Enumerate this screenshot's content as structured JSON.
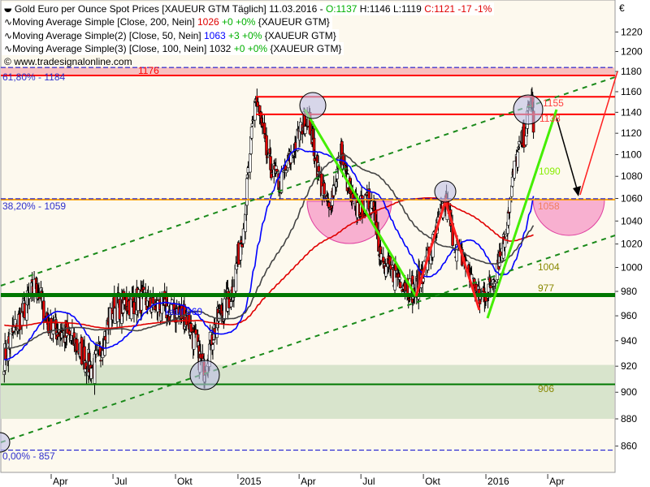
{
  "currency_symbol": "€",
  "legend": {
    "main": {
      "icon": "candlestick-icon",
      "name": "Gold Euro per Ounce Spot Prices [XAUEUR GTM  Täglich]",
      "date": "11.03.2016",
      "sep": "-",
      "open": "O:1137",
      "high": "H:1146",
      "low": "L:1119",
      "close": "C:1121",
      "change": "-17",
      "pct": "-1%"
    },
    "ma": [
      {
        "icon": "wave-icon",
        "name": "Moving Average Simple [Close, 200, Nein]",
        "value": "1026",
        "change": "+0",
        "pct": "+0%",
        "symbol": "{XAUEUR GTM}",
        "color": "#e00000"
      },
      {
        "icon": "wave-icon",
        "name": "Moving Average Simple(2) [Close, 50, Nein]",
        "value": "1063",
        "change": "+3",
        "pct": "+0%",
        "symbol": "{XAUEUR GTM}",
        "color": "#0000ff"
      },
      {
        "icon": "wave-icon",
        "name": "Moving Average Simple(3) [Close, 100, Nein]",
        "value": "1032",
        "change": "+0",
        "pct": "+0%",
        "symbol": "{XAUEUR GTM}",
        "color": "#444444"
      }
    ],
    "watermark": "www.tradesignalonline.com"
  },
  "chart_data": {
    "type": "candlestick",
    "yscale": "log",
    "ylim": [
      845,
      1235
    ],
    "xlim": [
      "2014-01-16",
      "2016-06-15"
    ],
    "yticks": [
      860,
      880,
      900,
      920,
      940,
      960,
      980,
      1000,
      1020,
      1040,
      1060,
      1080,
      1100,
      1120,
      1140,
      1160,
      1180,
      1200,
      1220
    ],
    "xticks": [
      {
        "date": "2014-04-01",
        "label": "Apr"
      },
      {
        "date": "2014-07-01",
        "label": "Jul"
      },
      {
        "date": "2014-10-01",
        "label": "Okt"
      },
      {
        "date": "2015-01-01",
        "label": "2015"
      },
      {
        "date": "2015-04-01",
        "label": "Apr"
      },
      {
        "date": "2015-07-01",
        "label": "Jul"
      },
      {
        "date": "2015-10-01",
        "label": "Okt"
      },
      {
        "date": "2016-01-01",
        "label": "2016"
      },
      {
        "date": "2016-04-01",
        "label": "Apr"
      }
    ],
    "close_path": [
      [
        "2014-01-22",
        927
      ],
      [
        "2014-02-09",
        953
      ],
      [
        "2014-03-10",
        986
      ],
      [
        "2014-03-28",
        953
      ],
      [
        "2014-05-03",
        940
      ],
      [
        "2014-06-02",
        917
      ],
      [
        "2014-07-02",
        966
      ],
      [
        "2014-08-07",
        973
      ],
      [
        "2014-09-12",
        966
      ],
      [
        "2014-10-18",
        959
      ],
      [
        "2014-11-11",
        917
      ],
      [
        "2014-11-29",
        953
      ],
      [
        "2014-12-23",
        979
      ],
      [
        "2015-01-09",
        1035
      ],
      [
        "2015-01-27",
        1156
      ],
      [
        "2015-02-14",
        1094
      ],
      [
        "2015-03-04",
        1072
      ],
      [
        "2015-03-22",
        1101
      ],
      [
        "2015-04-13",
        1140
      ],
      [
        "2015-05-03",
        1072
      ],
      [
        "2015-05-15",
        1050
      ],
      [
        "2015-06-02",
        1101
      ],
      [
        "2015-06-20",
        1050
      ],
      [
        "2015-07-20",
        1057
      ],
      [
        "2015-08-01",
        1000
      ],
      [
        "2015-08-25",
        993
      ],
      [
        "2015-09-18",
        979
      ],
      [
        "2015-10-12",
        1014
      ],
      [
        "2015-11-02",
        1057
      ],
      [
        "2015-11-16",
        1021
      ],
      [
        "2015-12-04",
        1000
      ],
      [
        "2015-12-22",
        973
      ],
      [
        "2016-01-09",
        986
      ],
      [
        "2016-01-27",
        1021
      ],
      [
        "2016-02-14",
        1094
      ],
      [
        "2016-02-26",
        1117
      ],
      [
        "2016-03-09",
        1156
      ],
      [
        "2016-03-11",
        1121
      ]
    ],
    "moving_averages": [
      {
        "period": 200,
        "color": "#e00000"
      },
      {
        "period": 50,
        "color": "#0000ff"
      },
      {
        "period": 100,
        "color": "#444444"
      }
    ],
    "levels": [
      {
        "value": 1184,
        "label": "61,80% - 1184",
        "style": "dashed",
        "color": "#0000cc"
      },
      {
        "value": 1176,
        "label": "1176",
        "style": "solid",
        "color": "#ff0000"
      },
      {
        "value": 1155,
        "label": "1155",
        "style": "solid",
        "color": "#ff0000"
      },
      {
        "value": 1138,
        "label": "1138",
        "style": "solid",
        "color": "#ff0000"
      },
      {
        "value": 1090,
        "label": "1090",
        "color": "#88ee00"
      },
      {
        "value": 1059,
        "label": "38,20% - 1059",
        "style": "dashed",
        "color": "#ffa000"
      },
      {
        "value": 1058,
        "label": "1058",
        "color": "#f08060"
      },
      {
        "value": 1004,
        "label": "1004",
        "color": "#888800"
      },
      {
        "value": 977,
        "label": "977",
        "style": "solid",
        "color": "#007700"
      },
      {
        "value": 906,
        "label": "906",
        "style": "solid",
        "color": "#007700"
      },
      {
        "value": 857,
        "label": "0,00% - 857",
        "style": "dashed",
        "color": "#0000cc"
      }
    ],
    "zones": [
      {
        "from": 1176,
        "to": 1184,
        "color": "#f8c0c0"
      },
      {
        "from": 880,
        "to": 921,
        "color": "#d8e4cc"
      }
    ],
    "annotations": [
      {
        "text": "kauf 960",
        "color": "#0000ff"
      }
    ]
  }
}
